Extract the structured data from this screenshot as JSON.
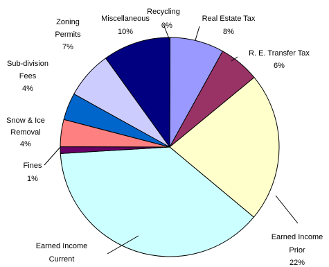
{
  "chart_data": {
    "type": "pie",
    "title": "",
    "legend": "none",
    "slices": [
      {
        "name": "Recycling",
        "value": 0,
        "label": "0%",
        "color": "#c0004f"
      },
      {
        "name": "Real Estate Tax",
        "value": 8,
        "label": "8%",
        "color": "#9999ff"
      },
      {
        "name": "R. E. Transfer Tax",
        "value": 6,
        "label": "6%",
        "color": "#993366"
      },
      {
        "name": "Earned Income Prior",
        "value": 22,
        "label": "22%",
        "color": "#ffffcc"
      },
      {
        "name": "Earned Income Current",
        "value": 38,
        "label": "",
        "color": "#ccffff"
      },
      {
        "name": "Fines",
        "value": 1,
        "label": "1%",
        "color": "#660066"
      },
      {
        "name": "Snow & Ice Removal",
        "value": 4,
        "label": "4%",
        "color": "#ff8080"
      },
      {
        "name": "Sub-division Fees",
        "value": 4,
        "label": "4%",
        "color": "#0066cc"
      },
      {
        "name": "Zoning Permits",
        "value": 7,
        "label": "7%",
        "color": "#ccccff"
      },
      {
        "name": "Miscellaneous",
        "value": 10,
        "label": "10%",
        "color": "#000080"
      }
    ]
  }
}
